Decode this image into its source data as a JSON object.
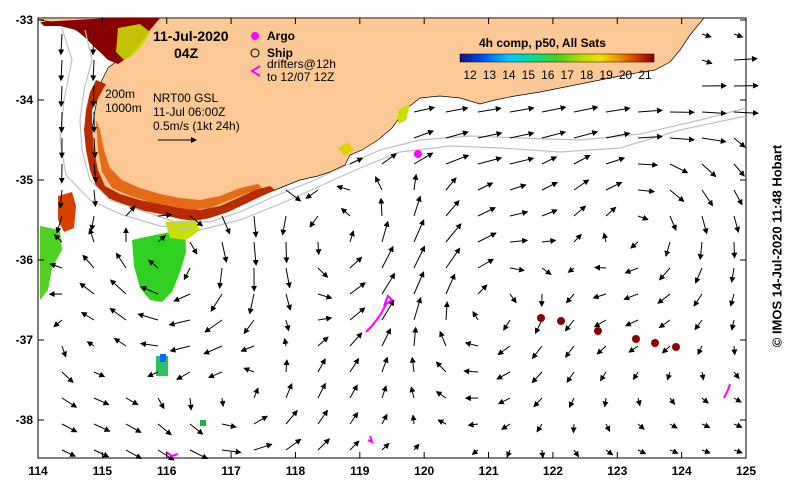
{
  "header": {
    "date": "11-Jul-2020",
    "time": "04Z"
  },
  "legend": {
    "argo": "Argo",
    "ship": "Ship",
    "drifters_line1": "drifters@12h",
    "drifters_line2": "to 12/07 12Z"
  },
  "product": {
    "line1": "NRT00 GSL",
    "line2": "11-Jul 06:00Z",
    "line3": "0.5m/s (1kt 24h)"
  },
  "contours": {
    "c200": "200m",
    "c1000": "1000m"
  },
  "colorbar": {
    "title": "4h comp, p50, All Sats",
    "ticks": [
      "12",
      "13",
      "14",
      "15",
      "16",
      "17",
      "18",
      "19",
      "20",
      "21"
    ],
    "colors": [
      "#1a1aa0",
      "#0060ff",
      "#00c8ff",
      "#00e0a0",
      "#30d020",
      "#a0e000",
      "#f0f000",
      "#f0a000",
      "#e05000",
      "#b01000",
      "#700000"
    ]
  },
  "axes": {
    "x_ticks": [
      "114",
      "115",
      "116",
      "117",
      "118",
      "119",
      "120",
      "121",
      "122",
      "123",
      "124",
      "125"
    ],
    "y_ticks": [
      "-33",
      "-34",
      "-35",
      "-36",
      "-37",
      "-38"
    ]
  },
  "credit": "© IMOS 14-Jul-2020 11:48 Hobart",
  "colors": {
    "land": "#fcc896",
    "argo": "#ff00ff",
    "ship_dots": "#8b0000",
    "drifters": "#ff00ff"
  }
}
